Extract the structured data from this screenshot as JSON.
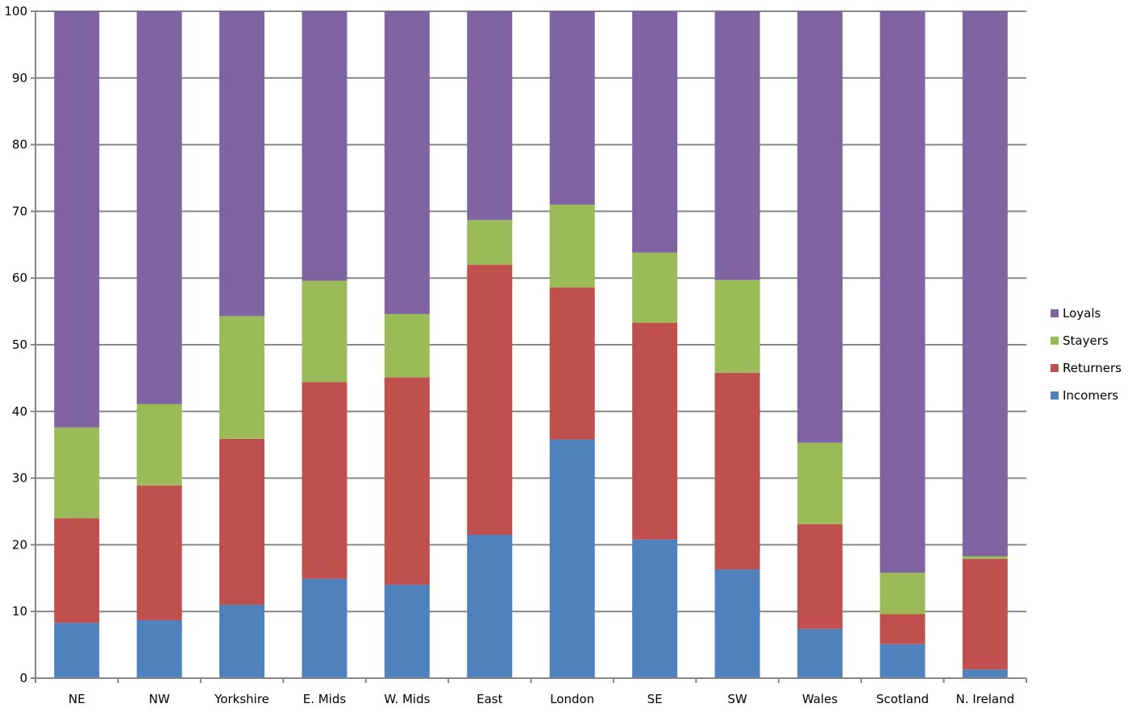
{
  "chart_data": {
    "type": "bar",
    "stacked": true,
    "title": "",
    "xlabel": "",
    "ylabel": "",
    "ylim": [
      0,
      100
    ],
    "yticks": [
      0,
      10,
      20,
      30,
      40,
      50,
      60,
      70,
      80,
      90,
      100
    ],
    "grid": "horizontal",
    "legend_position": "right",
    "categories": [
      "NE",
      "NW",
      "Yorkshire",
      "E. Mids",
      "W. Mids",
      "East",
      "London",
      "SE",
      "SW",
      "Wales",
      "Scotland",
      "N. Ireland"
    ],
    "series": [
      {
        "name": "Incomers",
        "color": "#4F81BD",
        "values": [
          8.3,
          8.7,
          11.0,
          14.9,
          14.0,
          21.5,
          35.8,
          20.8,
          16.3,
          7.4,
          5.1,
          1.3
        ]
      },
      {
        "name": "Returners",
        "color": "#C0504D",
        "values": [
          15.7,
          20.2,
          24.9,
          29.5,
          31.1,
          40.5,
          22.8,
          32.5,
          29.5,
          15.7,
          4.5,
          16.6
        ]
      },
      {
        "name": "Stayers",
        "color": "#9BBB59",
        "values": [
          13.6,
          12.2,
          18.4,
          15.2,
          9.5,
          6.7,
          12.4,
          10.5,
          13.9,
          12.2,
          6.2,
          0.4
        ]
      },
      {
        "name": "Loyals",
        "color": "#8064A2",
        "values": [
          62.4,
          58.9,
          45.7,
          40.4,
          45.4,
          31.3,
          29.0,
          36.2,
          40.3,
          64.7,
          84.2,
          81.7
        ]
      }
    ],
    "legend_order": [
      "Loyals",
      "Stayers",
      "Returners",
      "Incomers"
    ]
  }
}
